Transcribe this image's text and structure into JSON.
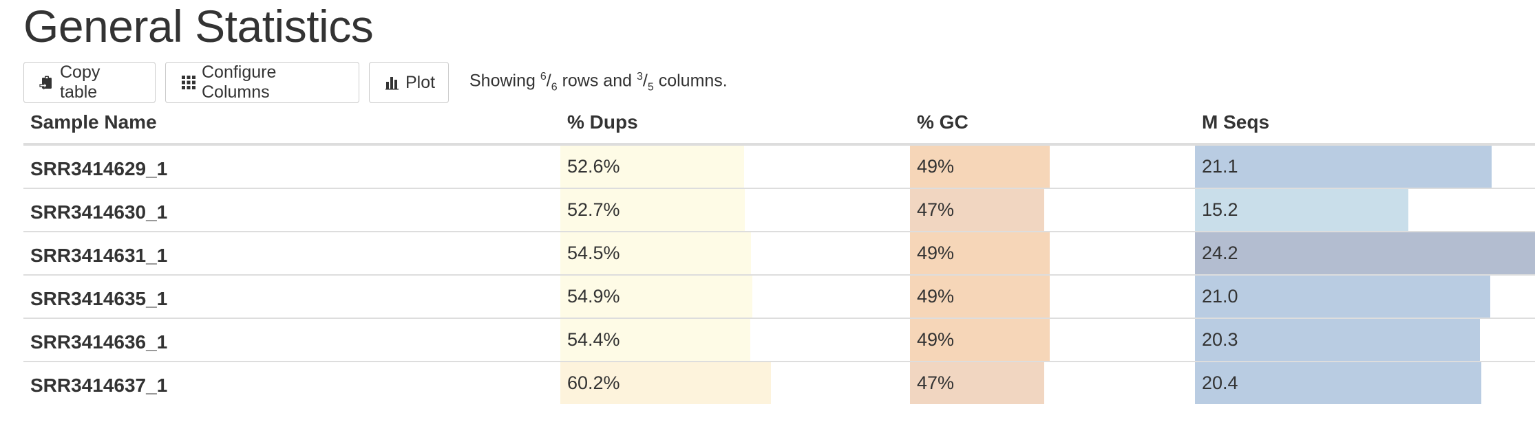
{
  "page": {
    "title": "General Statistics"
  },
  "toolbar": {
    "copy_label": "Copy table",
    "configure_label": "Configure Columns",
    "plot_label": "Plot",
    "showing": {
      "prefix": "Showing",
      "rows_shown": "6",
      "rows_total": "6",
      "rows_word": "rows and",
      "cols_shown": "3",
      "cols_total": "5",
      "cols_word": "columns."
    }
  },
  "table": {
    "headers": [
      "Sample Name",
      "% Dups",
      "% GC",
      "M Seqs"
    ],
    "rows": [
      {
        "sample": "SRR3414629_1",
        "dups": "52.6%",
        "dups_value": 52.6,
        "gc": "49%",
        "gc_value": 49,
        "seqs": "21.1",
        "seqs_value": 21.1,
        "seqs_color": "#b9cce2"
      },
      {
        "sample": "SRR3414630_1",
        "dups": "52.7%",
        "dups_value": 52.7,
        "gc": "47%",
        "gc_value": 47,
        "seqs": "15.2",
        "seqs_value": 15.2,
        "seqs_color": "#c9deea"
      },
      {
        "sample": "SRR3414631_1",
        "dups": "54.5%",
        "dups_value": 54.5,
        "gc": "49%",
        "gc_value": 49,
        "seqs": "24.2",
        "seqs_value": 24.2,
        "seqs_color": "#b3bdd0"
      },
      {
        "sample": "SRR3414635_1",
        "dups": "54.9%",
        "dups_value": 54.9,
        "gc": "49%",
        "gc_value": 49,
        "seqs": "21.0",
        "seqs_value": 21.0,
        "seqs_color": "#b9cce2"
      },
      {
        "sample": "SRR3414636_1",
        "dups": "54.4%",
        "dups_value": 54.4,
        "gc": "49%",
        "gc_value": 49,
        "seqs": "20.3",
        "seqs_value": 20.3,
        "seqs_color": "#b9cce2"
      },
      {
        "sample": "SRR3414637_1",
        "dups": "60.2%",
        "dups_value": 60.2,
        "gc": "47%",
        "gc_value": 47,
        "seqs": "20.4",
        "seqs_value": 20.4,
        "seqs_color": "#b9cce2"
      }
    ],
    "scales": {
      "dups_max": 100,
      "gc_max": 100,
      "seqs_max": 24.2
    },
    "colors": {
      "dups_bar": "#fefbe6",
      "dups_bar_high": "#fdf3dc",
      "gc_bar_49": "#f6d6b8",
      "gc_bar_47": "#f1d6c1"
    }
  }
}
